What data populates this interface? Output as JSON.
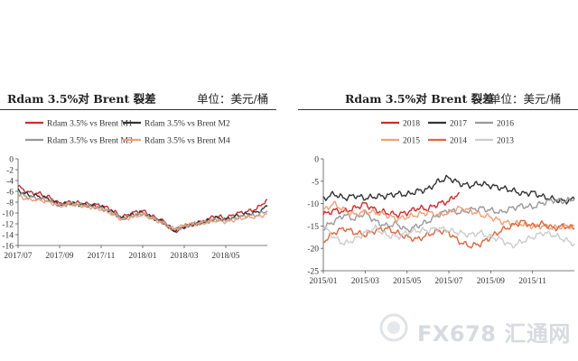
{
  "charts": [
    {
      "title": "Rdam 3.5%对 Brent 裂差",
      "unit": "单位：美元/桶",
      "ylim": [
        -16,
        0
      ],
      "yticks": [
        "0",
        "-2",
        "-4",
        "-6",
        "-8",
        "-10",
        "-12",
        "-14",
        "-16"
      ],
      "xticks": [
        "2017/07",
        "2017/09",
        "2017/11",
        "2018/01",
        "2018/03",
        "2018/05"
      ]
    },
    {
      "title": "Rdam 3.5%对 Brent 裂差",
      "unit": "单位：美元/桶",
      "ylim": [
        -25,
        0
      ],
      "yticks": [
        "0",
        "-5",
        "-10",
        "-15",
        "-20",
        "-25"
      ],
      "xticks": [
        "2015/01",
        "2015/03",
        "2015/05",
        "2015/07",
        "2015/09",
        "2015/11"
      ]
    }
  ],
  "chart_data": [
    {
      "type": "line",
      "title": "Rdam 3.5%对 Brent 裂差",
      "ylabel": "美元/桶",
      "ylim": [
        -16,
        0
      ],
      "x_range": [
        "2017/07",
        "2018/07"
      ],
      "series": [
        {
          "name": "Rdam 3.5% vs Brent M1",
          "color": "#d42a2a",
          "x": [
            0,
            0.5,
            1,
            1.5,
            2,
            2.5,
            3,
            3.5,
            4,
            4.5,
            5,
            5.5,
            6,
            6.5,
            7,
            7.5,
            8,
            8.5,
            9,
            9.5,
            10,
            10.5,
            11,
            11.5,
            12
          ],
          "values": [
            -5.1,
            -6.2,
            -6.4,
            -7.1,
            -8.3,
            -8.0,
            -8.2,
            -8.4,
            -8.6,
            -9.4,
            -10.8,
            -10.0,
            -9.6,
            -10.7,
            -11.5,
            -13.5,
            -12.6,
            -12.0,
            -11.5,
            -10.5,
            -11.0,
            -10.1,
            -9.8,
            -9.2,
            -7.5
          ]
        },
        {
          "name": "Rdam 3.5% vs Brent M2",
          "color": "#333333",
          "x": [
            0,
            0.5,
            1,
            1.5,
            2,
            2.5,
            3,
            3.5,
            4,
            4.5,
            5,
            5.5,
            6,
            6.5,
            7,
            7.5,
            8,
            8.5,
            9,
            9.5,
            10,
            10.5,
            11,
            11.5,
            12
          ],
          "values": [
            -5.8,
            -6.7,
            -6.9,
            -7.5,
            -8.5,
            -8.2,
            -8.4,
            -8.6,
            -8.9,
            -9.7,
            -11.0,
            -10.3,
            -9.9,
            -10.9,
            -11.7,
            -13.3,
            -12.5,
            -12.0,
            -11.6,
            -10.9,
            -11.2,
            -10.6,
            -10.2,
            -9.9,
            -8.8
          ]
        },
        {
          "name": "Rdam 3.5% vs Brent M3",
          "color": "#999999",
          "x": [
            0,
            0.5,
            1,
            1.5,
            2,
            2.5,
            3,
            3.5,
            4,
            4.5,
            5,
            5.5,
            6,
            6.5,
            7,
            7.5,
            8,
            8.5,
            9,
            9.5,
            10,
            10.5,
            11,
            11.5,
            12
          ],
          "values": [
            -6.4,
            -7.1,
            -7.3,
            -7.8,
            -8.6,
            -8.3,
            -8.5,
            -8.8,
            -9.1,
            -9.9,
            -11.1,
            -10.5,
            -10.1,
            -11.0,
            -11.8,
            -13.1,
            -12.4,
            -12.0,
            -11.7,
            -11.2,
            -11.4,
            -10.9,
            -10.5,
            -10.4,
            -9.6
          ]
        },
        {
          "name": "Rdam 3.5% vs Brent M4",
          "color": "#f0a078",
          "x": [
            0,
            0.5,
            1,
            1.5,
            2,
            2.5,
            3,
            3.5,
            4,
            4.5,
            5,
            5.5,
            6,
            6.5,
            7,
            7.5,
            8,
            8.5,
            9,
            9.5,
            10,
            10.5,
            11,
            11.5,
            12
          ],
          "values": [
            -6.9,
            -7.5,
            -7.6,
            -8.0,
            -8.7,
            -8.4,
            -8.6,
            -8.9,
            -9.3,
            -10.1,
            -11.2,
            -10.7,
            -10.3,
            -11.1,
            -11.9,
            -13.0,
            -12.3,
            -12.0,
            -11.8,
            -11.4,
            -11.6,
            -11.2,
            -10.8,
            -10.7,
            -10.2
          ]
        }
      ]
    },
    {
      "type": "line",
      "title": "Rdam 3.5%对 Brent 裂差",
      "ylabel": "美元/桶",
      "ylim": [
        -25,
        0
      ],
      "x_range": [
        "2015/01",
        "2016/01"
      ],
      "series": [
        {
          "name": "2018",
          "color": "#d42a2a",
          "x": [
            0,
            0.5,
            1,
            1.5,
            2,
            2.5,
            3,
            3.5,
            4,
            4.5,
            5,
            5.5,
            6,
            6.5
          ],
          "values": [
            -12.5,
            -11.5,
            -11.8,
            -11.0,
            -10.0,
            -11.5,
            -12.0,
            -12.5,
            -12.0,
            -11.0,
            -11.2,
            -10.0,
            -9.5,
            -7.5
          ]
        },
        {
          "name": "2017",
          "color": "#333333",
          "x": [
            0,
            0.5,
            1,
            1.5,
            2,
            2.5,
            3,
            3.5,
            4,
            4.5,
            5,
            5.5,
            6,
            6.5,
            7,
            7.5,
            8,
            8.5,
            9,
            9.5,
            10,
            10.5,
            11,
            11.5,
            12
          ],
          "values": [
            -9.0,
            -7.8,
            -8.8,
            -8.2,
            -8.8,
            -8.4,
            -8.3,
            -7.8,
            -8.0,
            -7.2,
            -6.8,
            -5.0,
            -4.2,
            -5.5,
            -6.0,
            -5.5,
            -6.0,
            -6.5,
            -7.0,
            -7.8,
            -7.5,
            -8.5,
            -9.0,
            -9.5,
            -9.0
          ]
        },
        {
          "name": "2016",
          "color": "#9a9a9a",
          "x": [
            0,
            0.5,
            1,
            1.5,
            2,
            2.5,
            3,
            3.5,
            4,
            4.5,
            5,
            5.5,
            6,
            6.5,
            7,
            7.5,
            8,
            8.5,
            9,
            9.5,
            10,
            10.5,
            11,
            11.5,
            12
          ],
          "values": [
            -15.5,
            -14.0,
            -12.5,
            -13.5,
            -12.0,
            -14.0,
            -15.0,
            -14.5,
            -16.0,
            -15.0,
            -14.0,
            -12.5,
            -11.5,
            -12.0,
            -11.5,
            -11.0,
            -11.5,
            -12.0,
            -11.0,
            -10.5,
            -10.8,
            -9.8,
            -9.2,
            -9.5,
            -9.0
          ]
        },
        {
          "name": "2015",
          "color": "#f0a078",
          "x": [
            0,
            0.5,
            1,
            1.5,
            2,
            2.5,
            3,
            3.5,
            4,
            4.5,
            5,
            5.5,
            6,
            6.5,
            7,
            7.5,
            8,
            8.5,
            9,
            9.5,
            10,
            10.5,
            11,
            11.5,
            12
          ],
          "values": [
            -11.5,
            -10.0,
            -11.5,
            -12.5,
            -11.8,
            -12.0,
            -12.5,
            -13.5,
            -13.0,
            -12.5,
            -12.0,
            -12.5,
            -12.0,
            -11.0,
            -11.5,
            -12.5,
            -13.0,
            -14.0,
            -14.5,
            -14.5,
            -15.0,
            -15.0,
            -15.5,
            -15.0,
            -15.0
          ]
        },
        {
          "name": "2014",
          "color": "#e2673a",
          "x": [
            0,
            0.5,
            1,
            1.5,
            2,
            2.5,
            3,
            3.5,
            4,
            4.5,
            5,
            5.5,
            6,
            6.5,
            7,
            7.5,
            8,
            8.5,
            9,
            9.5,
            10,
            10.5,
            11,
            11.5,
            12
          ],
          "values": [
            -18.5,
            -16.5,
            -15.5,
            -16.5,
            -17.0,
            -16.0,
            -15.5,
            -16.5,
            -17.5,
            -18.0,
            -17.0,
            -16.0,
            -16.5,
            -18.5,
            -19.5,
            -19.0,
            -17.5,
            -16.0,
            -15.0,
            -14.0,
            -15.0,
            -14.5,
            -15.5,
            -15.0,
            -15.5
          ]
        },
        {
          "name": "2013",
          "color": "#cccccc",
          "x": [
            0,
            0.5,
            1,
            1.5,
            2,
            2.5,
            3,
            3.5,
            4,
            4.5,
            5,
            5.5,
            6,
            6.5,
            7,
            7.5,
            8,
            8.5,
            9,
            9.5,
            10,
            10.5,
            11,
            11.5,
            12
          ],
          "values": [
            -15.0,
            -17.5,
            -19.0,
            -18.0,
            -16.5,
            -15.5,
            -17.0,
            -17.5,
            -16.5,
            -16.0,
            -16.0,
            -15.5,
            -16.0,
            -16.5,
            -17.0,
            -16.5,
            -17.5,
            -18.0,
            -19.5,
            -18.5,
            -17.5,
            -16.5,
            -17.0,
            -18.0,
            -19.0
          ]
        }
      ]
    }
  ],
  "watermark": "FX678 汇通网"
}
